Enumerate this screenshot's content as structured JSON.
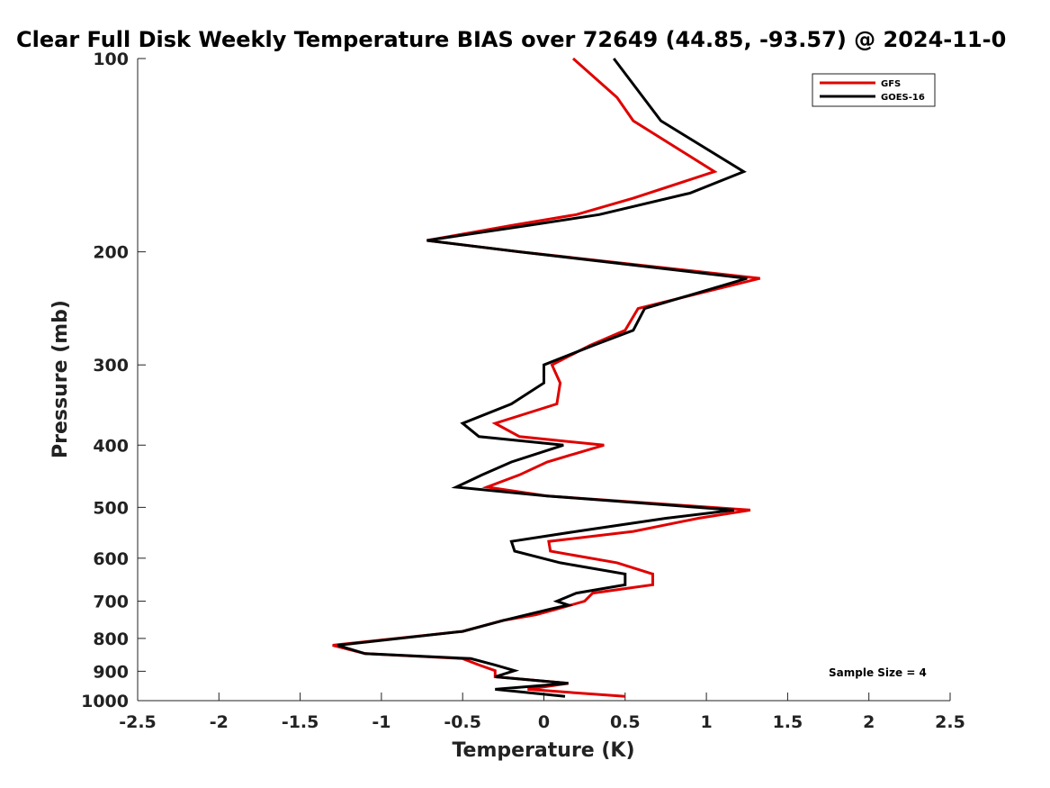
{
  "chart_data": {
    "type": "line",
    "title": "Clear Full Disk Weekly Temperature BIAS over 72649 (44.85, -93.57) @ 2024-11-0",
    "xlabel": "Temperature (K)",
    "ylabel": "Pressure (mb)",
    "xlim": [
      -2.5,
      2.5
    ],
    "ylim": [
      100,
      1000
    ],
    "y_scale": "log",
    "y_reversed": true,
    "xticks": [
      -2.5,
      -2,
      -1.5,
      -1,
      -0.5,
      0,
      0.5,
      1,
      1.5,
      2,
      2.5
    ],
    "xtick_labels": [
      "-2.5",
      "-2",
      "-1.5",
      "-1",
      "-0.5",
      "0",
      "0.5",
      "1",
      "1.5",
      "2",
      "2.5"
    ],
    "yticks": [
      100,
      200,
      300,
      400,
      500,
      600,
      700,
      800,
      900,
      1000
    ],
    "ytick_labels": [
      "100",
      "200",
      "300",
      "400",
      "500",
      "600",
      "700",
      "800",
      "900",
      "1000"
    ],
    "grid": false,
    "legend_position": "top-right",
    "annotation": "Sample Size = 4",
    "series": [
      {
        "name": "GFS",
        "color": "#e00000",
        "points": [
          [
            0.18,
            100
          ],
          [
            0.45,
            115
          ],
          [
            0.55,
            125
          ],
          [
            1.05,
            150
          ],
          [
            0.55,
            165
          ],
          [
            0.2,
            175
          ],
          [
            -0.2,
            182
          ],
          [
            -0.72,
            192
          ],
          [
            -0.15,
            200
          ],
          [
            1.33,
            220
          ],
          [
            0.58,
            245
          ],
          [
            0.5,
            265
          ],
          [
            0.28,
            280
          ],
          [
            0.05,
            300
          ],
          [
            0.1,
            320
          ],
          [
            0.08,
            345
          ],
          [
            -0.3,
            370
          ],
          [
            -0.15,
            388
          ],
          [
            0.37,
            400
          ],
          [
            0.02,
            425
          ],
          [
            -0.15,
            445
          ],
          [
            -0.35,
            465
          ],
          [
            0.02,
            480
          ],
          [
            1.27,
            505
          ],
          [
            0.95,
            520
          ],
          [
            0.55,
            545
          ],
          [
            0.03,
            565
          ],
          [
            0.04,
            585
          ],
          [
            0.45,
            610
          ],
          [
            0.67,
            635
          ],
          [
            0.67,
            660
          ],
          [
            0.3,
            680
          ],
          [
            0.25,
            700
          ],
          [
            0.08,
            720
          ],
          [
            -0.05,
            735
          ],
          [
            -0.25,
            750
          ],
          [
            -0.5,
            780
          ],
          [
            -1.3,
            820
          ],
          [
            -1.1,
            845
          ],
          [
            -0.5,
            860
          ],
          [
            -0.4,
            880
          ],
          [
            -0.3,
            898
          ],
          [
            -0.3,
            918
          ],
          [
            0.15,
            940
          ],
          [
            -0.1,
            960
          ],
          [
            0.5,
            985
          ]
        ]
      },
      {
        "name": "GOES-16",
        "color": "#000000",
        "points": [
          [
            0.43,
            100
          ],
          [
            0.72,
            125
          ],
          [
            1.23,
            150
          ],
          [
            0.9,
            162
          ],
          [
            0.34,
            175
          ],
          [
            -0.1,
            182
          ],
          [
            -0.72,
            192
          ],
          [
            -0.15,
            200
          ],
          [
            1.25,
            220
          ],
          [
            0.62,
            245
          ],
          [
            0.55,
            265
          ],
          [
            0.3,
            280
          ],
          [
            0.0,
            300
          ],
          [
            0.0,
            320
          ],
          [
            -0.2,
            345
          ],
          [
            -0.5,
            370
          ],
          [
            -0.4,
            388
          ],
          [
            0.12,
            400
          ],
          [
            -0.2,
            425
          ],
          [
            -0.38,
            445
          ],
          [
            -0.54,
            465
          ],
          [
            0.02,
            480
          ],
          [
            1.17,
            505
          ],
          [
            0.75,
            520
          ],
          [
            0.2,
            545
          ],
          [
            -0.2,
            565
          ],
          [
            -0.18,
            585
          ],
          [
            0.1,
            610
          ],
          [
            0.5,
            635
          ],
          [
            0.5,
            660
          ],
          [
            0.2,
            680
          ],
          [
            0.08,
            700
          ],
          [
            0.15,
            710
          ],
          [
            0.04,
            720
          ],
          [
            -0.25,
            750
          ],
          [
            -0.5,
            780
          ],
          [
            -1.27,
            820
          ],
          [
            -1.1,
            845
          ],
          [
            -0.45,
            860
          ],
          [
            -0.3,
            880
          ],
          [
            -0.18,
            898
          ],
          [
            -0.3,
            918
          ],
          [
            0.15,
            940
          ],
          [
            -0.3,
            960
          ],
          [
            0.13,
            985
          ]
        ]
      }
    ]
  }
}
